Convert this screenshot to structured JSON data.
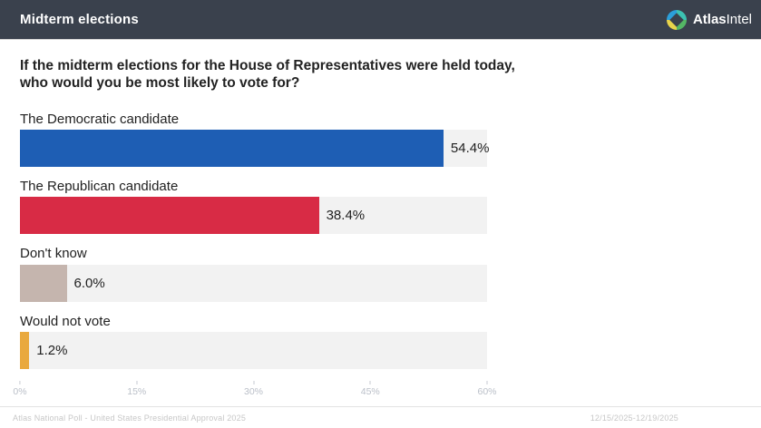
{
  "header": {
    "title": "Midterm elections",
    "brand": {
      "bold_part": "Atlas",
      "light_part": "Intel"
    }
  },
  "question": "If the midterm elections for the House of Representatives were held today, who would you be most likely to vote for?",
  "chart_data": {
    "type": "bar",
    "orientation": "horizontal",
    "title": "If the midterm elections for the House of Representatives were held today, who would you be most likely to vote for?",
    "categories": [
      "The Democratic candidate",
      "The Republican candidate",
      "Don't know",
      "Would not vote"
    ],
    "values": [
      54.4,
      38.4,
      6.0,
      1.2
    ],
    "value_labels": [
      "54.4%",
      "38.4%",
      "6.0%",
      "1.2%"
    ],
    "bar_colors": [
      "#1e5eb4",
      "#d82b45",
      "#c5b5ae",
      "#e9a93e"
    ],
    "track_color": "#f2f2f2",
    "xlim": [
      0,
      60
    ],
    "x_tick_values": [
      0,
      15,
      30,
      45,
      60
    ],
    "x_tick_labels": [
      "0%",
      "15%",
      "30%",
      "45%",
      "60%"
    ],
    "grid": false,
    "legend": false
  },
  "footer": {
    "source": "Atlas National Poll - United States Presidential Approval 2025",
    "date_range": "12/15/2025-12/19/2025"
  }
}
